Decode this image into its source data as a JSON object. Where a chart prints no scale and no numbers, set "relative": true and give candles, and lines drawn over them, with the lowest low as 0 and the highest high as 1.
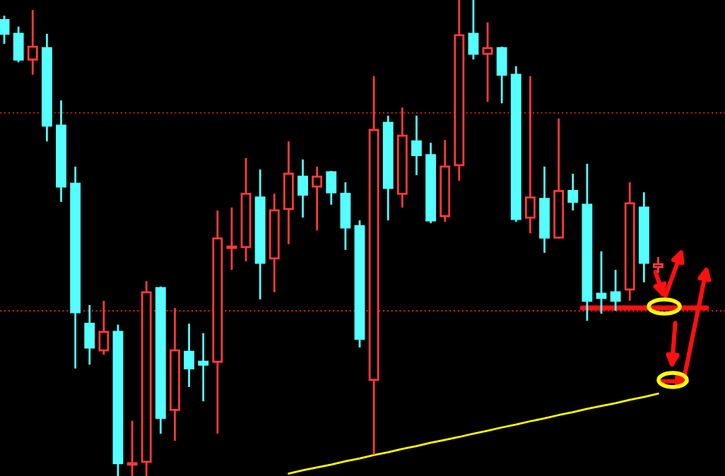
{
  "chart_data": {
    "type": "candlestick",
    "relative": true,
    "legend": false,
    "categories": [
      null,
      null,
      null,
      null,
      null,
      null,
      null,
      null,
      null,
      null,
      null,
      null,
      null,
      null,
      null,
      null,
      null,
      null,
      null,
      null,
      null,
      null,
      null,
      null,
      null,
      null,
      null,
      null,
      null,
      null,
      null,
      null,
      null,
      null,
      null,
      null,
      null,
      null,
      null,
      null,
      null,
      null,
      null,
      null,
      null,
      null,
      null
    ],
    "colors": [
      "#55ffff",
      "#55ffff",
      "#ff3b3b",
      "#55ffff",
      "#55ffff",
      "#55ffff",
      "#55ffff",
      "#ff3b3b",
      "#55ffff",
      "#ff3b3b",
      "#ff3b3b",
      "#55ffff",
      "#ff3b3b",
      "#55ffff",
      "#55ffff",
      "#ff3b3b",
      "#ff3b3b",
      "#ff3b3b",
      "#55ffff",
      "#ff3b3b",
      "#ff3b3b",
      "#55ffff",
      "#ff3b3b",
      "#55ffff",
      "#55ffff",
      "#55ffff",
      "#ff3b3b",
      "#55ffff",
      "#ff3b3b",
      "#55ffff",
      "#55ffff",
      "#ff3b3b",
      "#ff3b3b",
      "#55ffff",
      "#ff3b3b",
      "#55ffff",
      "#55ffff",
      "#ff3b3b",
      "#55ffff",
      "#ff3b3b",
      "#55ffff",
      "#55ffff",
      "#55ffff",
      "#55ffff",
      "#ff3b3b",
      "#55ffff",
      "#ff3b3b"
    ],
    "ohlc": [
      [
        0.958,
        0.967,
        0.908,
        0.929
      ],
      [
        0.929,
        0.944,
        0.869,
        0.875
      ],
      [
        0.875,
        0.979,
        0.843,
        0.902
      ],
      [
        0.899,
        0.929,
        0.703,
        0.736
      ],
      [
        0.736,
        0.789,
        0.576,
        0.608
      ],
      [
        0.614,
        0.65,
        0.226,
        0.344
      ],
      [
        0.32,
        0.359,
        0.234,
        0.27
      ],
      [
        0.264,
        0.368,
        0.255,
        0.303
      ],
      [
        0.303,
        0.318,
        0,
        0.027
      ],
      [
        0.024,
        0.116,
        0,
        0.027
      ],
      [
        0.03,
        0.409,
        0,
        0.386
      ],
      [
        0.395,
        0.398,
        0.089,
        0.122
      ],
      [
        0.139,
        0.353,
        0.074,
        0.264
      ],
      [
        0.261,
        0.32,
        0.187,
        0.226
      ],
      [
        0.24,
        0.3,
        0.157,
        0.234
      ],
      [
        0.24,
        0.558,
        0.089,
        0.499
      ],
      [
        0.479,
        0.564,
        0.433,
        0.482
      ],
      [
        0.481,
        0.668,
        0.451,
        0.593
      ],
      [
        0.585,
        0.644,
        0.371,
        0.448
      ],
      [
        0.457,
        0.593,
        0.386,
        0.558
      ],
      [
        0.561,
        0.703,
        0.487,
        0.635
      ],
      [
        0.629,
        0.665,
        0.543,
        0.591
      ],
      [
        0.608,
        0.65,
        0.516,
        0.629
      ],
      [
        0.638,
        0.641,
        0.57,
        0.596
      ],
      [
        0.593,
        0.617,
        0.475,
        0.522
      ],
      [
        0.525,
        0.537,
        0.27,
        0.288
      ],
      [
        0.202,
        0.84,
        0.045,
        0.727
      ],
      [
        0.742,
        0.757,
        0.537,
        0.605
      ],
      [
        0.593,
        0.774,
        0.564,
        0.715
      ],
      [
        0.703,
        0.757,
        0.632,
        0.674
      ],
      [
        0.674,
        0.7,
        0.531,
        0.537
      ],
      [
        0.546,
        0.706,
        0.534,
        0.65
      ],
      [
        0.653,
        1,
        0.62,
        0.926
      ],
      [
        0.929,
        1,
        0.875,
        0.887
      ],
      [
        0.887,
        0.953,
        0.786,
        0.899
      ],
      [
        0.899,
        0.902,
        0.783,
        0.843
      ],
      [
        0.843,
        0.861,
        0.534,
        0.54
      ],
      [
        0.543,
        0.84,
        0.51,
        0.585
      ],
      [
        0.582,
        0.65,
        0.469,
        0.501
      ],
      [
        0.501,
        0.751,
        0.499,
        0.599
      ],
      [
        0.599,
        0.635,
        0.558,
        0.576
      ],
      [
        0.57,
        0.656,
        0.326,
        0.368
      ],
      [
        0.383,
        0.472,
        0.341,
        0.374
      ],
      [
        0.386,
        0.433,
        0.347,
        0.368
      ],
      [
        0.392,
        0.617,
        0.368,
        0.573
      ],
      [
        0.564,
        0.596,
        0.407,
        0.448
      ],
      [
        0.439,
        0.46,
        0.427,
        0.445
      ]
    ],
    "series": [
      {
        "type": "line",
        "values": [
          null,
          null,
          null,
          null,
          null,
          null,
          null,
          null,
          null,
          null,
          null,
          null,
          null,
          null,
          null,
          null,
          null,
          null,
          null,
          null,
          0.005,
          0.012,
          0.018,
          0.024,
          0.031,
          0.037,
          0.044,
          0.05,
          0.057,
          0.063,
          0.07,
          0.076,
          0.082,
          0.089,
          0.095,
          0.102,
          0.108,
          0.115,
          0.121,
          0.128,
          0.134,
          0.141,
          0.147,
          0.153,
          0.16,
          0.166,
          0.173
        ],
        "color": "#ffff00"
      }
    ],
    "ref_lines": [
      {
        "axis": "y",
        "value": 0.763,
        "color": "#c0201f",
        "line_style": "dotted"
      },
      {
        "axis": "y",
        "value": 0.347,
        "color": "#c0201f",
        "line_style": "dotted"
      }
    ]
  }
}
